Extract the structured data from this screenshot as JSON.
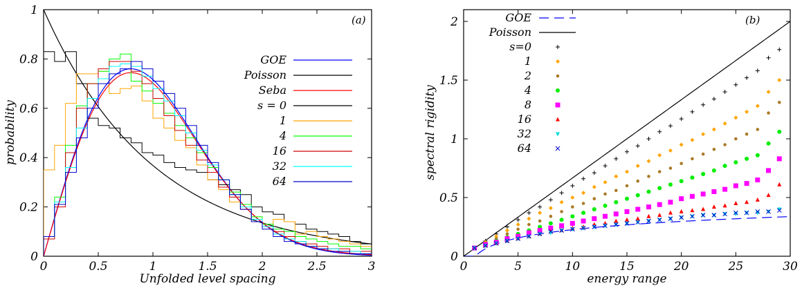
{
  "chart_data": [
    {
      "panel_label": "(a)",
      "type": "line",
      "xlabel": "Unfolded level spacing",
      "ylabel": "probability",
      "xlim": [
        0,
        3
      ],
      "ylim": [
        0,
        1
      ],
      "xticks": [
        "0",
        "0.5",
        "1",
        "1.5",
        "2",
        "2.5",
        "3"
      ],
      "yticks": [
        "0",
        "0.2",
        "0.4",
        "0.6",
        "0.8",
        "1"
      ],
      "legend_position": "right",
      "bin_width": 0.1,
      "series": [
        {
          "name": "GOE",
          "color": "#0000ff",
          "kind": "curve",
          "formula": "goe"
        },
        {
          "name": "Poisson",
          "color": "#000000",
          "kind": "curve",
          "formula": "poisson"
        },
        {
          "name": "Seba",
          "color": "#ff0000",
          "kind": "curve",
          "formula": "seba"
        },
        {
          "name": "s = 0",
          "color": "#000000",
          "kind": "hist",
          "values": [
            0.83,
            0.79,
            0.83,
            0.7,
            0.56,
            0.53,
            0.52,
            0.48,
            0.46,
            0.42,
            0.41,
            0.38,
            0.36,
            0.35,
            0.34,
            0.31,
            0.29,
            0.27,
            0.25,
            0.2,
            0.18,
            0.17,
            0.14,
            0.13,
            0.11,
            0.1,
            0.09,
            0.08,
            0.06,
            0.05
          ]
        },
        {
          "name": "1",
          "color": "#ffa500",
          "kind": "hist",
          "values": [
            0.35,
            0.45,
            0.62,
            0.74,
            0.74,
            0.75,
            0.66,
            0.68,
            0.69,
            0.63,
            0.56,
            0.52,
            0.47,
            0.44,
            0.37,
            0.31,
            0.27,
            0.22,
            0.19,
            0.16,
            0.13,
            0.15,
            0.14,
            0.09,
            0.1,
            0.08,
            0.07,
            0.06,
            0.05,
            0.04
          ]
        },
        {
          "name": "4",
          "color": "#00ff00",
          "kind": "hist",
          "values": [
            0.08,
            0.24,
            0.45,
            0.61,
            0.7,
            0.75,
            0.8,
            0.82,
            0.71,
            0.67,
            0.62,
            0.58,
            0.53,
            0.48,
            0.42,
            0.36,
            0.31,
            0.26,
            0.21,
            0.16,
            0.13,
            0.11,
            0.1,
            0.08,
            0.07,
            0.06,
            0.05,
            0.04,
            0.04,
            0.03
          ]
        },
        {
          "name": "16",
          "color": "#cc0000",
          "kind": "hist",
          "values": [
            0.07,
            0.2,
            0.42,
            0.6,
            0.7,
            0.76,
            0.79,
            0.79,
            0.75,
            0.7,
            0.64,
            0.57,
            0.51,
            0.45,
            0.39,
            0.34,
            0.28,
            0.24,
            0.19,
            0.15,
            0.12,
            0.1,
            0.08,
            0.06,
            0.05,
            0.04,
            0.03,
            0.03,
            0.02,
            0.02
          ]
        },
        {
          "name": "32",
          "color": "#00ffff",
          "kind": "hist",
          "values": [
            0.08,
            0.22,
            0.36,
            0.52,
            0.64,
            0.72,
            0.77,
            0.78,
            0.77,
            0.73,
            0.68,
            0.63,
            0.57,
            0.5,
            0.43,
            0.37,
            0.31,
            0.25,
            0.2,
            0.15,
            0.12,
            0.09,
            0.07,
            0.06,
            0.04,
            0.03,
            0.03,
            0.02,
            0.02,
            0.01
          ]
        },
        {
          "name": "64",
          "color": "#0000cc",
          "kind": "hist",
          "values": [
            0.08,
            0.21,
            0.34,
            0.48,
            0.6,
            0.7,
            0.74,
            0.76,
            0.79,
            0.76,
            0.71,
            0.66,
            0.6,
            0.53,
            0.45,
            0.38,
            0.31,
            0.25,
            0.19,
            0.14,
            0.11,
            0.08,
            0.06,
            0.05,
            0.04,
            0.03,
            0.02,
            0.02,
            0.01,
            0.01
          ]
        }
      ]
    },
    {
      "panel_label": "(b)",
      "type": "scatter",
      "xlabel": "energy range",
      "ylabel": "spectral rigidity",
      "xlim": [
        0,
        30
      ],
      "ylim": [
        0,
        2.1
      ],
      "xticks": [
        "0",
        "5",
        "10",
        "15",
        "20",
        "25",
        "30"
      ],
      "yticks": [
        "0",
        "0.5",
        "1",
        "1.5",
        "2"
      ],
      "legend_position": "top-left",
      "series": [
        {
          "name": "GOE",
          "color": "#0000ff",
          "kind": "curve",
          "formula": "goe_rigidity",
          "dash": true
        },
        {
          "name": "Poisson",
          "color": "#000000",
          "kind": "curve",
          "formula": "poisson_rigidity"
        },
        {
          "name": "s=0",
          "color": "#000000",
          "kind": "points",
          "marker": "plus",
          "x": [
            1,
            2,
            3,
            4,
            5,
            6,
            7,
            8,
            9,
            10,
            11,
            12,
            13,
            14,
            15,
            16,
            17,
            18,
            19,
            20,
            21,
            22,
            23,
            24,
            25,
            26,
            27,
            28,
            29
          ],
          "y": [
            0.07,
            0.13,
            0.19,
            0.25,
            0.31,
            0.37,
            0.42,
            0.48,
            0.54,
            0.6,
            0.66,
            0.71,
            0.77,
            0.83,
            0.89,
            0.94,
            1.0,
            1.06,
            1.11,
            1.17,
            1.23,
            1.29,
            1.34,
            1.4,
            1.46,
            1.52,
            1.58,
            1.69,
            1.76
          ]
        },
        {
          "name": "1",
          "color": "#ffa500",
          "kind": "points",
          "marker": "diamond",
          "x": [
            1,
            2,
            3,
            4,
            5,
            6,
            7,
            8,
            9,
            10,
            11,
            12,
            13,
            14,
            15,
            16,
            17,
            18,
            19,
            20,
            21,
            22,
            23,
            24,
            25,
            26,
            27,
            28,
            29
          ],
          "y": [
            0.07,
            0.12,
            0.17,
            0.22,
            0.27,
            0.32,
            0.37,
            0.41,
            0.46,
            0.5,
            0.54,
            0.59,
            0.63,
            0.68,
            0.72,
            0.77,
            0.81,
            0.86,
            0.9,
            0.95,
            0.99,
            1.04,
            1.08,
            1.13,
            1.18,
            1.23,
            1.28,
            1.4,
            1.5
          ]
        },
        {
          "name": "2",
          "color": "#aa7a28",
          "kind": "points",
          "marker": "circle-small",
          "x": [
            1,
            2,
            3,
            4,
            5,
            6,
            7,
            8,
            9,
            10,
            11,
            12,
            13,
            14,
            15,
            16,
            17,
            18,
            19,
            20,
            21,
            22,
            23,
            24,
            25,
            26,
            27,
            28,
            29
          ],
          "y": [
            0.07,
            0.11,
            0.15,
            0.19,
            0.23,
            0.27,
            0.3,
            0.34,
            0.38,
            0.42,
            0.45,
            0.49,
            0.53,
            0.56,
            0.6,
            0.64,
            0.68,
            0.72,
            0.75,
            0.79,
            0.83,
            0.87,
            0.91,
            0.95,
            1.0,
            1.04,
            1.08,
            1.22,
            1.31
          ]
        },
        {
          "name": "4",
          "color": "#00ee00",
          "kind": "points",
          "marker": "circle",
          "x": [
            1,
            2,
            3,
            4,
            5,
            6,
            7,
            8,
            9,
            10,
            11,
            12,
            13,
            14,
            15,
            16,
            17,
            18,
            19,
            20,
            21,
            22,
            23,
            24,
            25,
            26,
            27,
            28,
            29
          ],
          "y": [
            0.07,
            0.1,
            0.13,
            0.16,
            0.19,
            0.22,
            0.25,
            0.28,
            0.31,
            0.34,
            0.37,
            0.4,
            0.43,
            0.46,
            0.49,
            0.52,
            0.55,
            0.58,
            0.61,
            0.64,
            0.67,
            0.7,
            0.73,
            0.77,
            0.8,
            0.83,
            0.86,
            0.96,
            1.06
          ]
        },
        {
          "name": "8",
          "color": "#ff00ff",
          "kind": "points",
          "marker": "square",
          "x": [
            1,
            2,
            3,
            4,
            5,
            6,
            7,
            8,
            9,
            10,
            11,
            12,
            13,
            14,
            15,
            16,
            17,
            18,
            19,
            20,
            21,
            22,
            23,
            24,
            25,
            26,
            27,
            28,
            29
          ],
          "y": [
            0.07,
            0.1,
            0.12,
            0.15,
            0.17,
            0.2,
            0.22,
            0.24,
            0.26,
            0.28,
            0.3,
            0.32,
            0.34,
            0.36,
            0.38,
            0.4,
            0.42,
            0.44,
            0.46,
            0.49,
            0.51,
            0.53,
            0.55,
            0.57,
            0.6,
            0.62,
            0.65,
            0.73,
            0.83
          ]
        },
        {
          "name": "16",
          "color": "#ff0000",
          "kind": "points",
          "marker": "triangle",
          "x": [
            1,
            2,
            3,
            4,
            5,
            6,
            7,
            8,
            9,
            10,
            11,
            12,
            13,
            14,
            15,
            16,
            17,
            18,
            19,
            20,
            21,
            22,
            23,
            24,
            25,
            26,
            27,
            28,
            29
          ],
          "y": [
            0.07,
            0.09,
            0.11,
            0.13,
            0.15,
            0.17,
            0.19,
            0.21,
            0.22,
            0.24,
            0.25,
            0.27,
            0.28,
            0.3,
            0.31,
            0.32,
            0.34,
            0.35,
            0.37,
            0.38,
            0.39,
            0.4,
            0.42,
            0.43,
            0.45,
            0.46,
            0.48,
            0.52,
            0.61
          ]
        },
        {
          "name": "32",
          "color": "#00dddd",
          "kind": "points",
          "marker": "triangle-down",
          "x": [
            1,
            2,
            3,
            4,
            5,
            6,
            7,
            8,
            9,
            10,
            11,
            12,
            13,
            14,
            15,
            16,
            17,
            18,
            19,
            20,
            21,
            22,
            23,
            24,
            25,
            26,
            27,
            28,
            29
          ],
          "y": [
            0.07,
            0.09,
            0.11,
            0.13,
            0.15,
            0.17,
            0.19,
            0.2,
            0.22,
            0.23,
            0.24,
            0.25,
            0.26,
            0.27,
            0.28,
            0.29,
            0.3,
            0.31,
            0.32,
            0.33,
            0.34,
            0.35,
            0.35,
            0.36,
            0.36,
            0.37,
            0.37,
            0.38,
            0.4
          ]
        },
        {
          "name": "64",
          "color": "#0000cc",
          "kind": "points",
          "marker": "cross",
          "x": [
            1,
            2,
            3,
            4,
            5,
            6,
            7,
            8,
            9,
            10,
            11,
            12,
            13,
            14,
            15,
            16,
            17,
            18,
            19,
            20,
            21,
            22,
            23,
            24,
            25,
            26,
            27,
            28,
            29
          ],
          "y": [
            0.07,
            0.09,
            0.11,
            0.13,
            0.15,
            0.17,
            0.19,
            0.21,
            0.22,
            0.23,
            0.24,
            0.25,
            0.26,
            0.27,
            0.28,
            0.29,
            0.3,
            0.31,
            0.32,
            0.33,
            0.34,
            0.35,
            0.35,
            0.36,
            0.37,
            0.37,
            0.38,
            0.38,
            0.39
          ]
        }
      ]
    }
  ]
}
